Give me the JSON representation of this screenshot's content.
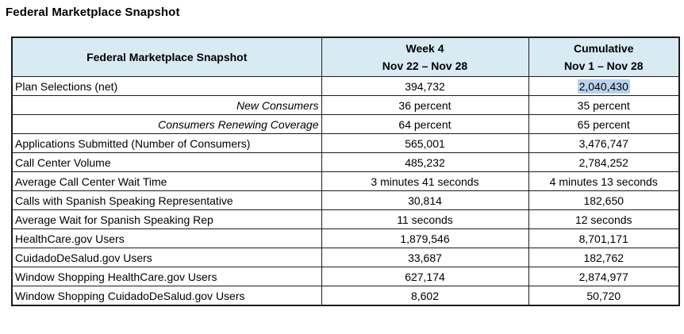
{
  "page_title": "Federal Marketplace Snapshot",
  "table": {
    "header": {
      "label_col": "Federal Marketplace Snapshot",
      "week_col_line1": "Week 4",
      "week_col_line2": "Nov 22 – Nov 28",
      "cumulative_col_line1": "Cumulative",
      "cumulative_col_line2": "Nov 1 – Nov 28"
    },
    "rows": [
      {
        "label": "Plan Selections (net)",
        "week": "394,732",
        "cumulative": "2,040,430",
        "style": "normal",
        "cumulative_highlighted": true
      },
      {
        "label": "New Consumers",
        "week": "36 percent",
        "cumulative": "35 percent",
        "style": "italic-right",
        "cumulative_highlighted": false
      },
      {
        "label": "Consumers Renewing Coverage",
        "week": "64 percent",
        "cumulative": "65 percent",
        "style": "italic-right",
        "cumulative_highlighted": false
      },
      {
        "label": "Applications Submitted (Number of Consumers)",
        "week": "565,001",
        "cumulative": "3,476,747",
        "style": "normal",
        "cumulative_highlighted": false
      },
      {
        "label": "Call Center Volume",
        "week": "485,232",
        "cumulative": "2,784,252",
        "style": "normal",
        "cumulative_highlighted": false
      },
      {
        "label": "Average Call Center Wait Time",
        "week": "3 minutes 41 seconds",
        "cumulative": "4 minutes 13 seconds",
        "style": "normal",
        "cumulative_highlighted": false
      },
      {
        "label": "Calls with Spanish Speaking Representative",
        "week": "30,814",
        "cumulative": "182,650",
        "style": "normal",
        "cumulative_highlighted": false
      },
      {
        "label": "Average Wait for Spanish Speaking Rep",
        "week": "11 seconds",
        "cumulative": "12 seconds",
        "style": "normal",
        "cumulative_highlighted": false
      },
      {
        "label": "HealthCare.gov Users",
        "week": "1,879,546",
        "cumulative": "8,701,171",
        "style": "normal",
        "cumulative_highlighted": false
      },
      {
        "label": "CuidadoDeSalud.gov Users",
        "week": "33,687",
        "cumulative": "182,762",
        "style": "normal",
        "cumulative_highlighted": false
      },
      {
        "label": "Window Shopping HealthCare.gov Users",
        "week": "627,174",
        "cumulative": "2,874,977",
        "style": "normal",
        "cumulative_highlighted": false
      },
      {
        "label": "Window Shopping CuidadoDeSalud.gov Users",
        "week": "8,602",
        "cumulative": "50,720",
        "style": "normal",
        "cumulative_highlighted": false
      }
    ],
    "colors": {
      "header_bg": "#d8eaf2",
      "selection_highlight": "#b9d3ee",
      "border": "#1c1c1c"
    }
  }
}
